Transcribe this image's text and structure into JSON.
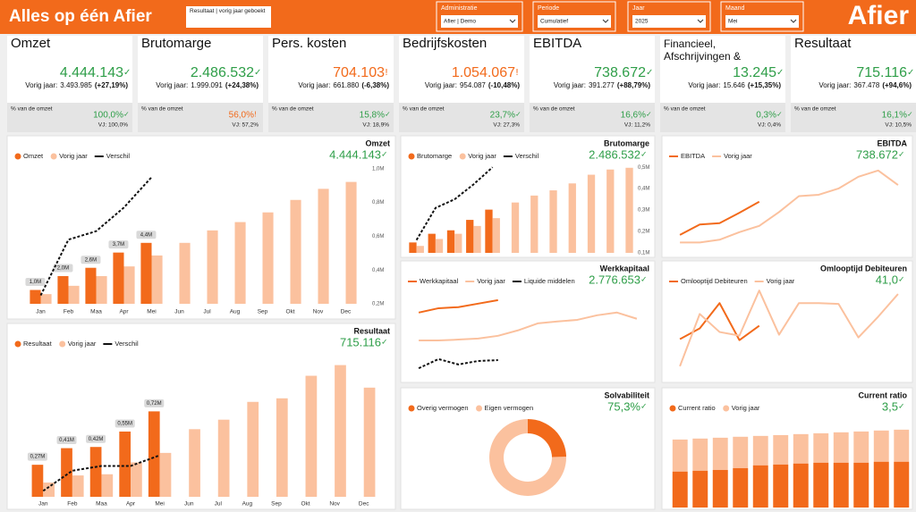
{
  "header": {
    "title": "Alles op één Afier",
    "button": "Resultaat | vorig jaar geboekt",
    "filters": [
      {
        "label": "Administratie",
        "value": "Afier | Demo"
      },
      {
        "label": "Periode",
        "value": "Cumulatief"
      },
      {
        "label": "Jaar",
        "value": "2025"
      },
      {
        "label": "Maand",
        "value": "Mei"
      }
    ],
    "logo": "Afier"
  },
  "kpi_cards": [
    {
      "title": "Omzet",
      "value": "4.444.143",
      "icon": "✓",
      "color": "#2e9e48",
      "prev_label": "Vorig jaar:",
      "prev_value": "3.493.985",
      "prev_change": "(+27,19%)",
      "share_label": "% van de omzet",
      "share": "100,0%",
      "share_icon": "✓",
      "share_color": "#2e9e48",
      "share_prev": "VJ: 100,0%"
    },
    {
      "title": "Brutomarge",
      "value": "2.486.532",
      "icon": "✓",
      "color": "#2e9e48",
      "prev_label": "Vorig jaar:",
      "prev_value": "1.999.091",
      "prev_change": "(+24,38%)",
      "share_label": "% van de omzet",
      "share": "56,0%",
      "share_icon": "!",
      "share_color": "#f26a1b",
      "share_prev": "VJ: 57,2%"
    },
    {
      "title": "Pers. kosten",
      "value": "704.103",
      "icon": "!",
      "color": "#f26a1b",
      "prev_label": "Vorig jaar:",
      "prev_value": "661.880",
      "prev_change": "(-6,38%)",
      "share_label": "% van de omzet",
      "share": "15,8%",
      "share_icon": "✓",
      "share_color": "#2e9e48",
      "share_prev": "VJ: 18,9%"
    },
    {
      "title": "Bedrijfskosten",
      "value": "1.054.067",
      "icon": "!",
      "color": "#f26a1b",
      "prev_label": "Vorig jaar:",
      "prev_value": "954.087",
      "prev_change": "(-10,48%)",
      "share_label": "% van de omzet",
      "share": "23,7%",
      "share_icon": "✓",
      "share_color": "#2e9e48",
      "share_prev": "VJ: 27,3%"
    },
    {
      "title": "EBITDA",
      "value": "738.672",
      "icon": "✓",
      "color": "#2e9e48",
      "prev_label": "Vorig jaar:",
      "prev_value": "391.277",
      "prev_change": "(+88,79%)",
      "share_label": "% van de omzet",
      "share": "16,6%",
      "share_icon": "✓",
      "share_color": "#2e9e48",
      "share_prev": "VJ: 11,2%"
    },
    {
      "title": "Financieel, Afschrijvingen & Belastingen",
      "value": "13.245",
      "icon": "✓",
      "color": "#2e9e48",
      "prev_label": "Vorig jaar:",
      "prev_value": "15.646",
      "prev_change": "(+15,35%)",
      "share_label": "% van de omzet",
      "share": "0,3%",
      "share_icon": "✓",
      "share_color": "#2e9e48",
      "share_prev": "VJ: 0,4%"
    },
    {
      "title": "Resultaat",
      "value": "715.116",
      "icon": "✓",
      "color": "#2e9e48",
      "prev_label": "Vorig jaar:",
      "prev_value": "367.478",
      "prev_change": "(+94,6%)",
      "share_label": "% van de omzet",
      "share": "16,1%",
      "share_icon": "✓",
      "share_color": "#2e9e48",
      "share_prev": "VJ: 10,5%"
    }
  ],
  "chart_data": [
    {
      "type": "combo",
      "title": "Omzet",
      "headline": "4.444.143",
      "headline_icon": "✓",
      "headline_color": "#2e9e48",
      "bar_mode": "grouped",
      "categories": [
        "Jan",
        "Feb",
        "Maa",
        "Apr",
        "Mei",
        "Jun",
        "Jul",
        "Aug",
        "Sep",
        "Okt",
        "Nov",
        "Dec"
      ],
      "ylim": [
        0,
        10
      ],
      "y2lim": [
        0.2,
        1.02
      ],
      "y2ticks": [
        {
          "value": 0.2,
          "label": "0,2M"
        },
        {
          "value": 0.4,
          "label": "0,4M"
        },
        {
          "value": 0.6,
          "label": "0,6M"
        },
        {
          "value": 0.8,
          "label": "0,8M"
        },
        {
          "value": 1.0,
          "label": "1,0M"
        }
      ],
      "series": [
        {
          "name": "Omzet",
          "kind": "bar",
          "color": "#f26a1b",
          "values": [
            1.0,
            2.0,
            2.6,
            3.7,
            4.4,
            null,
            null,
            null,
            null,
            null,
            null,
            null
          ],
          "value_labels": [
            "1,0M",
            "2,0M",
            "2,6M",
            "3,7M",
            "4,4M",
            null,
            null,
            null,
            null,
            null,
            null,
            null
          ]
        },
        {
          "name": "Vorig jaar",
          "kind": "bar",
          "color": "#fbc19e",
          "values": [
            0.7,
            1.3,
            2.0,
            2.7,
            3.49,
            4.4,
            5.3,
            5.9,
            6.6,
            7.5,
            8.3,
            8.8
          ]
        },
        {
          "name": "Verschil",
          "kind": "line",
          "color": "#111111",
          "dash": true,
          "axis": "y2",
          "values": [
            0.25,
            0.58,
            0.63,
            0.77,
            0.95,
            null,
            null,
            null,
            null,
            null,
            null,
            null
          ]
        }
      ]
    },
    {
      "type": "combo",
      "title": "Brutomarge",
      "headline": "2.486.532",
      "headline_icon": "✓",
      "headline_color": "#2e9e48",
      "bar_mode": "grouped",
      "categories": [
        null,
        null,
        null,
        null,
        null,
        null,
        null,
        null,
        null,
        null,
        null,
        null
      ],
      "ylim": [
        0,
        5.3
      ],
      "y2lim": [
        0.1,
        0.53
      ],
      "y2ticks": [
        {
          "value": 0.1,
          "label": "0,1M"
        },
        {
          "value": 0.2,
          "label": "0,2M"
        },
        {
          "value": 0.3,
          "label": "0,3M"
        },
        {
          "value": 0.4,
          "label": "0,4M"
        },
        {
          "value": 0.5,
          "label": "0,5M"
        }
      ],
      "series": [
        {
          "name": "Brutomarge",
          "kind": "bar",
          "color": "#f26a1b",
          "values": [
            0.6,
            1.1,
            1.3,
            1.9,
            2.49,
            null,
            null,
            null,
            null,
            null,
            null,
            null
          ]
        },
        {
          "name": "Vorig jaar",
          "kind": "bar",
          "color": "#fbc19e",
          "values": [
            0.4,
            0.8,
            1.1,
            1.55,
            2.0,
            2.9,
            3.3,
            3.6,
            4.0,
            4.5,
            4.8,
            4.9
          ]
        },
        {
          "name": "Verschil",
          "kind": "line",
          "color": "#111111",
          "dash": true,
          "axis": "y2",
          "values": [
            0.16,
            0.31,
            0.35,
            0.42,
            0.5,
            null,
            null,
            null,
            null,
            null,
            null,
            null
          ]
        }
      ]
    },
    {
      "type": "line",
      "title": "EBITDA",
      "headline": "738.672",
      "headline_icon": "✓",
      "headline_color": "#2e9e48",
      "categories": [
        null,
        null,
        null,
        null,
        null,
        null,
        null,
        null,
        null,
        null,
        null,
        null
      ],
      "ylim": [
        0,
        1.33
      ],
      "series": [
        {
          "name": "EBITDA",
          "kind": "line",
          "color": "#f26a1b",
          "values": [
            0.26,
            0.41,
            0.43,
            0.58,
            0.74,
            null,
            null,
            null,
            null,
            null,
            null,
            null
          ]
        },
        {
          "name": "Vorig jaar",
          "kind": "line",
          "color": "#fbc19e",
          "values": [
            0.15,
            0.15,
            0.19,
            0.3,
            0.39,
            0.59,
            0.82,
            0.84,
            0.93,
            1.1,
            1.19,
            0.98
          ]
        }
      ]
    },
    {
      "type": "line",
      "title": "Werkkapitaal",
      "headline": "2.776.653",
      "headline_icon": "✓",
      "headline_color": "#2e9e48",
      "categories": [
        null,
        null,
        null,
        null,
        null,
        null,
        null,
        null,
        null,
        null,
        null,
        null
      ],
      "ylim": [
        0,
        3.8
      ],
      "series": [
        {
          "name": "Werkkapitaal",
          "kind": "line",
          "color": "#f26a1b",
          "values": [
            2.32,
            2.48,
            2.52,
            2.65,
            2.78,
            null,
            null,
            null,
            null,
            null,
            null,
            null
          ]
        },
        {
          "name": "Vorig jaar",
          "kind": "line",
          "color": "#fbc19e",
          "values": [
            1.29,
            1.29,
            1.32,
            1.36,
            1.46,
            1.66,
            1.92,
            1.99,
            2.05,
            2.22,
            2.32,
            2.09
          ]
        },
        {
          "name": "Liquide middelen",
          "kind": "line",
          "color": "#111111",
          "dash": true,
          "values": [
            0.26,
            0.6,
            0.4,
            0.53,
            0.56,
            null,
            null,
            null,
            null,
            null,
            null,
            null
          ]
        }
      ]
    },
    {
      "type": "line",
      "title": "Omlooptijd Debiteuren",
      "headline": "41,0",
      "headline_icon": "✓",
      "headline_color": "#2e9e48",
      "categories": [
        null,
        null,
        null,
        null,
        null,
        null,
        null,
        null,
        null,
        null,
        null,
        null
      ],
      "ylim": [
        0,
        85
      ],
      "series": [
        {
          "name": "Omlooptijd Debiteuren",
          "kind": "line",
          "color": "#f26a1b",
          "values": [
            29.9,
            38.8,
            59.7,
            29.1,
            41.0,
            null,
            null,
            null,
            null,
            null,
            null,
            null
          ]
        },
        {
          "name": "Vorig jaar",
          "kind": "line",
          "color": "#fbc19e",
          "values": [
            7.5,
            50.7,
            35.8,
            32.8,
            70.1,
            33.6,
            59.7,
            59.7,
            59.0,
            31.3,
            48.5,
            67.2
          ]
        }
      ]
    },
    {
      "type": "combo",
      "title": "Resultaat",
      "headline": "715.116",
      "headline_icon": "✓",
      "headline_color": "#2e9e48",
      "bar_mode": "grouped",
      "categories": [
        "Jan",
        "Feb",
        "Maa",
        "Apr",
        "Mei",
        "Jun",
        "Jul",
        "Aug",
        "Sep",
        "Okt",
        "Nov",
        "Dec"
      ],
      "ylim": [
        0,
        1.25
      ],
      "series": [
        {
          "name": "Resultaat",
          "kind": "bar",
          "color": "#f26a1b",
          "values": [
            0.27,
            0.41,
            0.42,
            0.55,
            0.72,
            null,
            null,
            null,
            null,
            null,
            null,
            null
          ],
          "value_labels": [
            "0,27M",
            "0,41M",
            "0,42M",
            "0,55M",
            "0,72M",
            null,
            null,
            null,
            null,
            null,
            null,
            null
          ]
        },
        {
          "name": "Vorig jaar",
          "kind": "bar",
          "color": "#fbc19e",
          "values": [
            0.12,
            0.18,
            0.19,
            0.29,
            0.37,
            0.57,
            0.65,
            0.8,
            0.83,
            1.02,
            1.11,
            0.92
          ]
        },
        {
          "name": "Verschil",
          "kind": "line",
          "color": "#111111",
          "dash": true,
          "values": [
            0.05,
            0.22,
            0.26,
            0.26,
            0.35,
            null,
            null,
            null,
            null,
            null,
            null,
            null
          ]
        }
      ]
    },
    {
      "type": "donut",
      "title": "Solvabiliteit",
      "headline": "75,3%",
      "headline_icon": "✓",
      "headline_color": "#2e9e48",
      "categories": [
        "Overig vermogen",
        "Eigen vermogen"
      ],
      "values": [
        24.7,
        75.3
      ],
      "colors": [
        "#f26a1b",
        "#fbc19e"
      ]
    },
    {
      "type": "combo",
      "title": "Current ratio",
      "headline": "3,5",
      "headline_icon": "✓",
      "headline_color": "#2e9e48",
      "bar_mode": "overlap",
      "categories": [
        null,
        null,
        null,
        null,
        null,
        null,
        null,
        null,
        null,
        null,
        null,
        null
      ],
      "ylim": [
        0,
        7.3
      ],
      "series": [
        {
          "name": "Current ratio",
          "kind": "bar",
          "color": "#f26a1b",
          "values": [
            2.99,
            3.06,
            3.13,
            3.28,
            3.51,
            3.58,
            3.66,
            3.73,
            3.73,
            3.73,
            3.81,
            3.81
          ]
        },
        {
          "name": "Vorig jaar",
          "kind": "bar",
          "color": "#fbc19e",
          "values": [
            5.67,
            5.75,
            5.82,
            5.9,
            5.97,
            6.04,
            6.12,
            6.19,
            6.27,
            6.34,
            6.42,
            6.49
          ]
        }
      ]
    }
  ]
}
